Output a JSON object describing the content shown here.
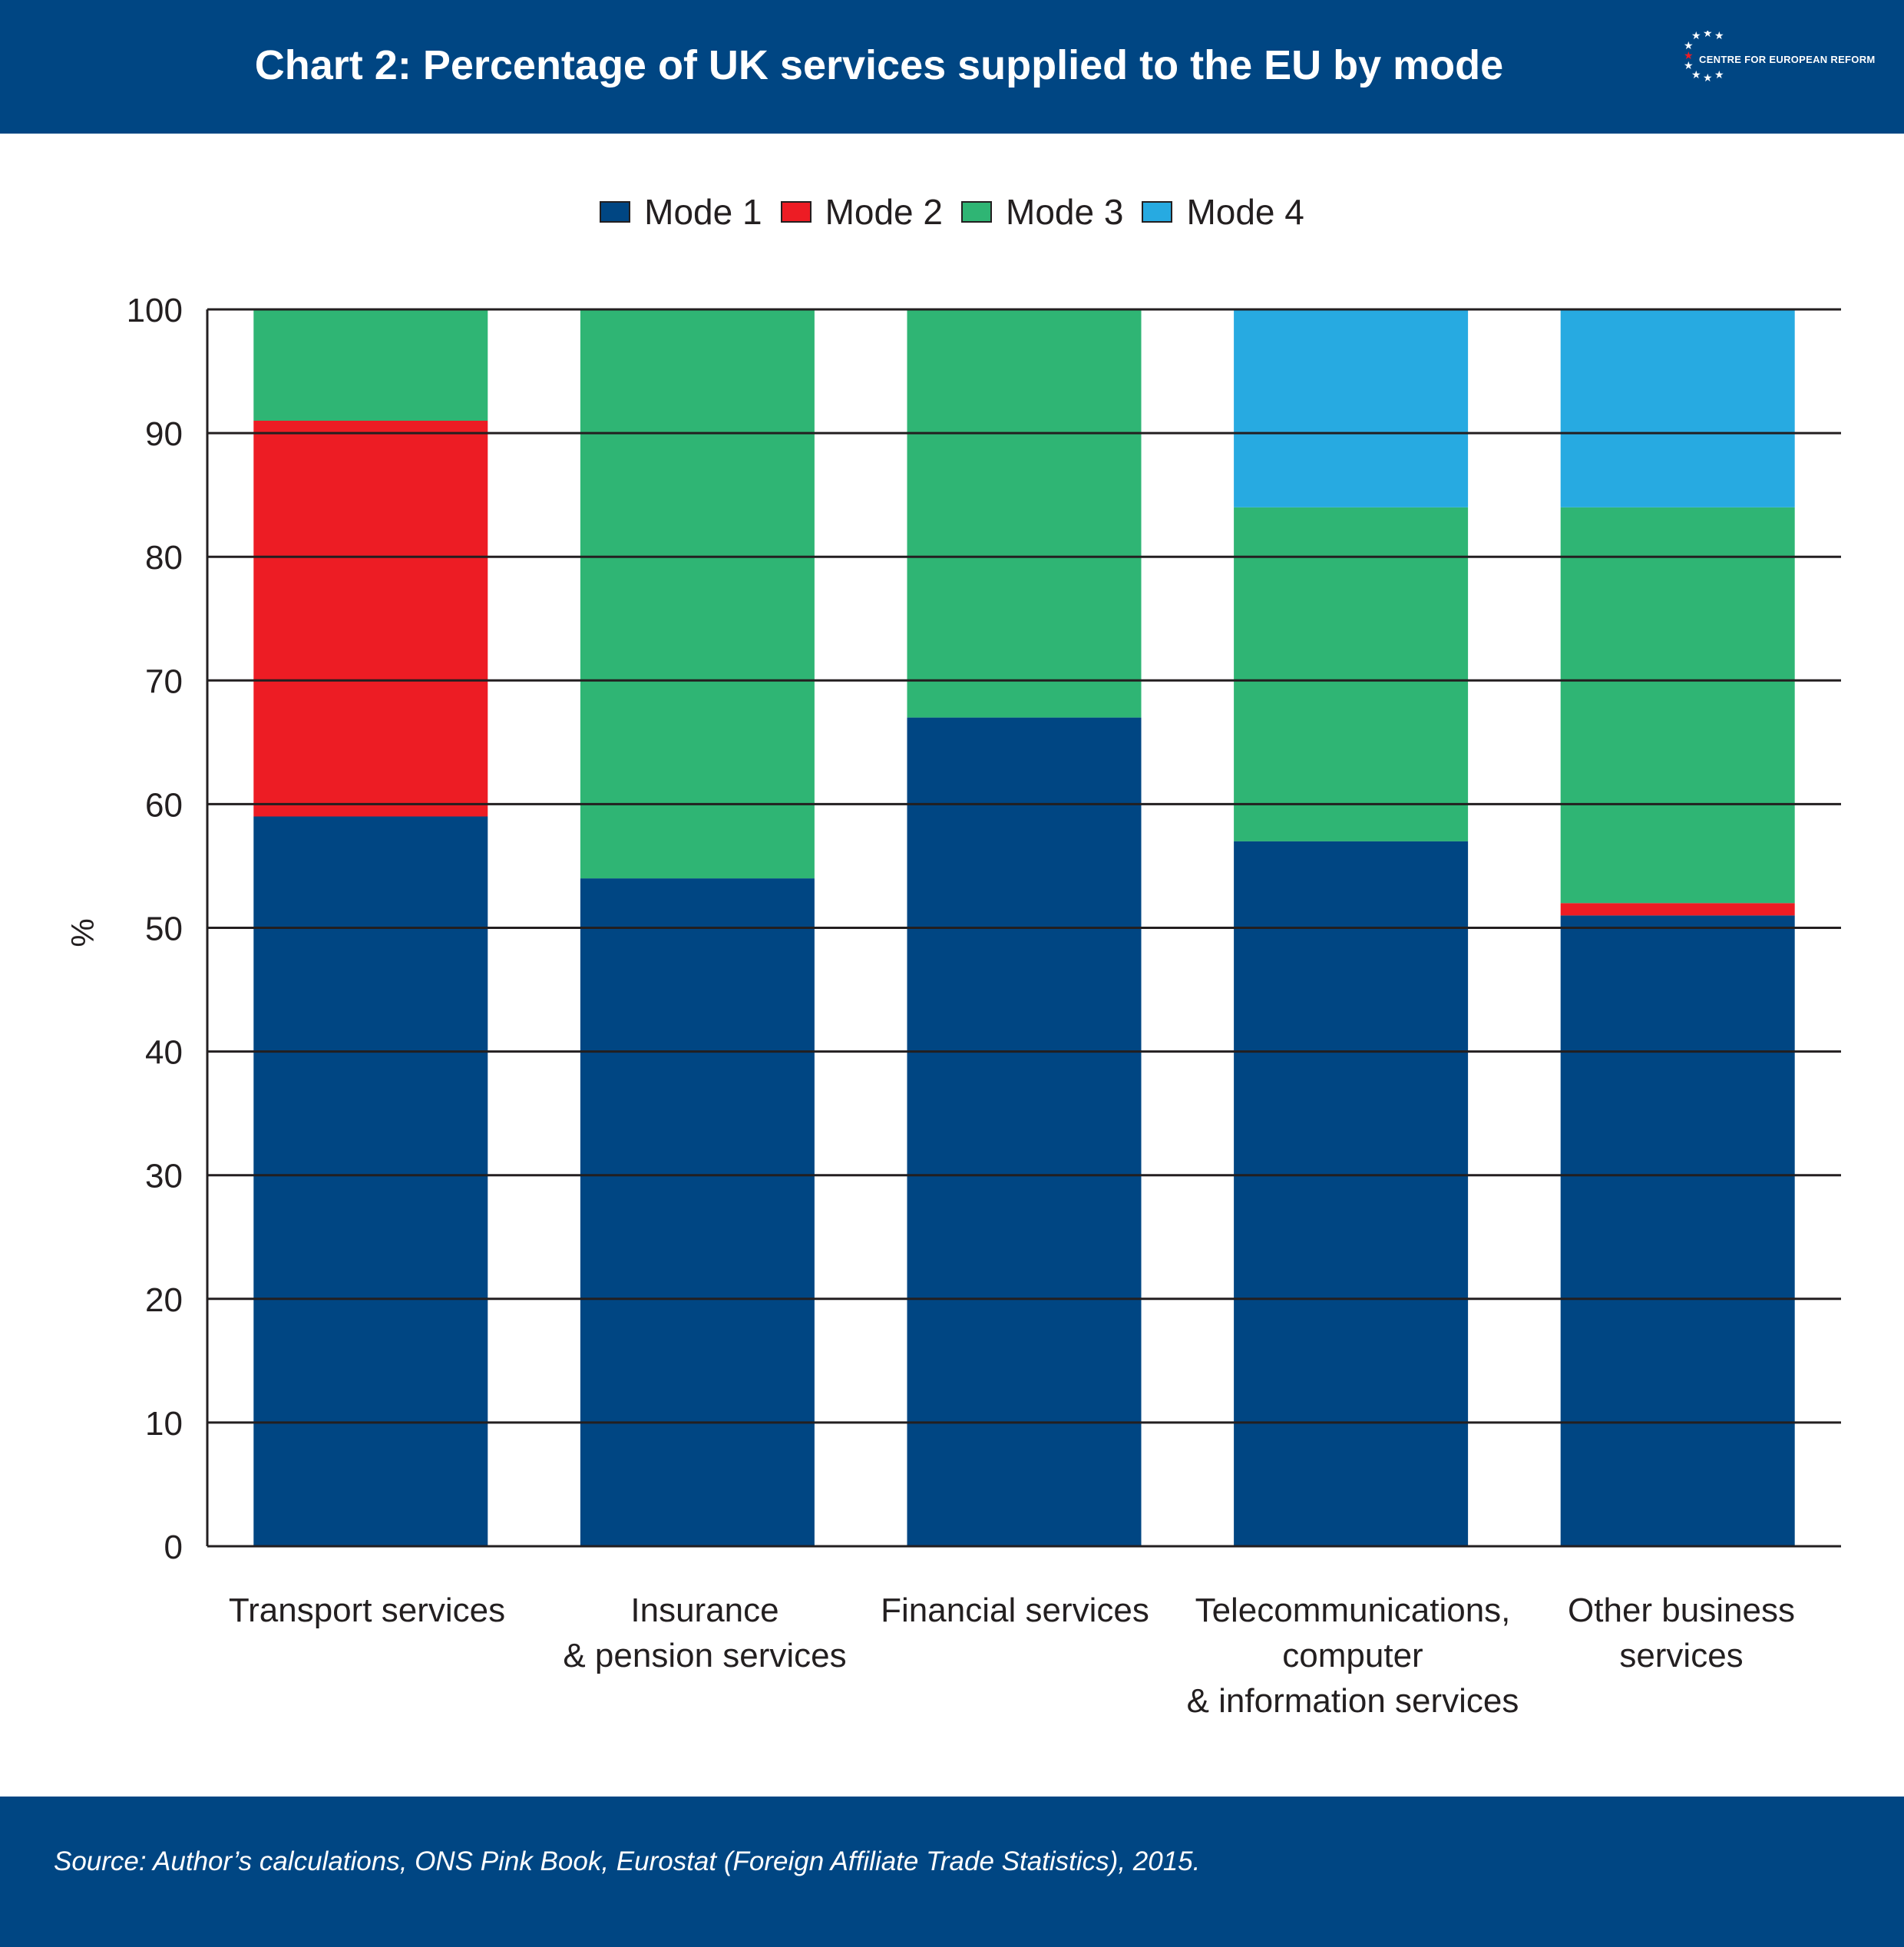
{
  "header": {
    "title": "Chart 2: Percentage of UK services supplied to the EU by mode",
    "logo_text": "CENTRE FOR EUROPEAN REFORM",
    "background": "#004683"
  },
  "chart_data": {
    "type": "bar",
    "stacked": true,
    "title": "Chart 2: Percentage of UK services supplied to the EU by mode",
    "ylabel": "%",
    "xlabel": "",
    "ylim": [
      0,
      100
    ],
    "yticks": [
      "0",
      "10",
      "20",
      "30",
      "40",
      "50",
      "60",
      "70",
      "80",
      "90",
      "100"
    ],
    "grid": true,
    "legend_position": "top-center",
    "categories": [
      [
        "Transport services"
      ],
      [
        "Insurance",
        "& pension services"
      ],
      [
        "Financial services"
      ],
      [
        "Telecommunications,",
        "computer",
        "& information services"
      ],
      [
        "Other business",
        "services"
      ]
    ],
    "series": [
      {
        "name": "Mode 1",
        "color": "#004683",
        "values": [
          59,
          54,
          67,
          57,
          51
        ]
      },
      {
        "name": "Mode 2",
        "color": "#ed1c24",
        "values": [
          32,
          0,
          0,
          0,
          1
        ]
      },
      {
        "name": "Mode 3",
        "color": "#2fb574",
        "values": [
          9,
          46,
          33,
          27,
          32
        ]
      },
      {
        "name": "Mode 4",
        "color": "#27aae1",
        "values": [
          0,
          0,
          0,
          16,
          16
        ]
      }
    ]
  },
  "footer": {
    "source": "Source: Author’s calculations, ONS Pink Book, Eurostat (Foreign Affiliate Trade Statistics), 2015."
  }
}
